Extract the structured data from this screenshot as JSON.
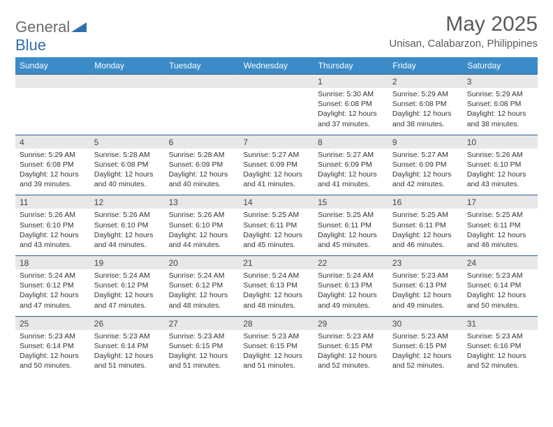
{
  "logo": {
    "text_general": "General",
    "text_blue": "Blue"
  },
  "title": "May 2025",
  "location": "Unisan, Calabarzon, Philippines",
  "colors": {
    "header_bg": "#3b8bc8",
    "header_text": "#ffffff",
    "daynum_bg": "#e8e8e8",
    "grid_border": "#2a5a8a",
    "body_text": "#333333",
    "title_text": "#5a5a5a",
    "logo_gray": "#6b6b6b",
    "logo_blue": "#2f6fab"
  },
  "day_headers": [
    "Sunday",
    "Monday",
    "Tuesday",
    "Wednesday",
    "Thursday",
    "Friday",
    "Saturday"
  ],
  "weeks": [
    [
      null,
      null,
      null,
      null,
      {
        "n": "1",
        "sunrise": "5:30 AM",
        "sunset": "6:08 PM",
        "dh": "12",
        "dm": "37"
      },
      {
        "n": "2",
        "sunrise": "5:29 AM",
        "sunset": "6:08 PM",
        "dh": "12",
        "dm": "38"
      },
      {
        "n": "3",
        "sunrise": "5:29 AM",
        "sunset": "6:08 PM",
        "dh": "12",
        "dm": "38"
      }
    ],
    [
      {
        "n": "4",
        "sunrise": "5:29 AM",
        "sunset": "6:08 PM",
        "dh": "12",
        "dm": "39"
      },
      {
        "n": "5",
        "sunrise": "5:28 AM",
        "sunset": "6:08 PM",
        "dh": "12",
        "dm": "40"
      },
      {
        "n": "6",
        "sunrise": "5:28 AM",
        "sunset": "6:09 PM",
        "dh": "12",
        "dm": "40"
      },
      {
        "n": "7",
        "sunrise": "5:27 AM",
        "sunset": "6:09 PM",
        "dh": "12",
        "dm": "41"
      },
      {
        "n": "8",
        "sunrise": "5:27 AM",
        "sunset": "6:09 PM",
        "dh": "12",
        "dm": "41"
      },
      {
        "n": "9",
        "sunrise": "5:27 AM",
        "sunset": "6:09 PM",
        "dh": "12",
        "dm": "42"
      },
      {
        "n": "10",
        "sunrise": "5:26 AM",
        "sunset": "6:10 PM",
        "dh": "12",
        "dm": "43"
      }
    ],
    [
      {
        "n": "11",
        "sunrise": "5:26 AM",
        "sunset": "6:10 PM",
        "dh": "12",
        "dm": "43"
      },
      {
        "n": "12",
        "sunrise": "5:26 AM",
        "sunset": "6:10 PM",
        "dh": "12",
        "dm": "44"
      },
      {
        "n": "13",
        "sunrise": "5:26 AM",
        "sunset": "6:10 PM",
        "dh": "12",
        "dm": "44"
      },
      {
        "n": "14",
        "sunrise": "5:25 AM",
        "sunset": "6:11 PM",
        "dh": "12",
        "dm": "45"
      },
      {
        "n": "15",
        "sunrise": "5:25 AM",
        "sunset": "6:11 PM",
        "dh": "12",
        "dm": "45"
      },
      {
        "n": "16",
        "sunrise": "5:25 AM",
        "sunset": "6:11 PM",
        "dh": "12",
        "dm": "46"
      },
      {
        "n": "17",
        "sunrise": "5:25 AM",
        "sunset": "6:11 PM",
        "dh": "12",
        "dm": "46"
      }
    ],
    [
      {
        "n": "18",
        "sunrise": "5:24 AM",
        "sunset": "6:12 PM",
        "dh": "12",
        "dm": "47"
      },
      {
        "n": "19",
        "sunrise": "5:24 AM",
        "sunset": "6:12 PM",
        "dh": "12",
        "dm": "47"
      },
      {
        "n": "20",
        "sunrise": "5:24 AM",
        "sunset": "6:12 PM",
        "dh": "12",
        "dm": "48"
      },
      {
        "n": "21",
        "sunrise": "5:24 AM",
        "sunset": "6:13 PM",
        "dh": "12",
        "dm": "48"
      },
      {
        "n": "22",
        "sunrise": "5:24 AM",
        "sunset": "6:13 PM",
        "dh": "12",
        "dm": "49"
      },
      {
        "n": "23",
        "sunrise": "5:23 AM",
        "sunset": "6:13 PM",
        "dh": "12",
        "dm": "49"
      },
      {
        "n": "24",
        "sunrise": "5:23 AM",
        "sunset": "6:14 PM",
        "dh": "12",
        "dm": "50"
      }
    ],
    [
      {
        "n": "25",
        "sunrise": "5:23 AM",
        "sunset": "6:14 PM",
        "dh": "12",
        "dm": "50"
      },
      {
        "n": "26",
        "sunrise": "5:23 AM",
        "sunset": "6:14 PM",
        "dh": "12",
        "dm": "51"
      },
      {
        "n": "27",
        "sunrise": "5:23 AM",
        "sunset": "6:15 PM",
        "dh": "12",
        "dm": "51"
      },
      {
        "n": "28",
        "sunrise": "5:23 AM",
        "sunset": "6:15 PM",
        "dh": "12",
        "dm": "51"
      },
      {
        "n": "29",
        "sunrise": "5:23 AM",
        "sunset": "6:15 PM",
        "dh": "12",
        "dm": "52"
      },
      {
        "n": "30",
        "sunrise": "5:23 AM",
        "sunset": "6:15 PM",
        "dh": "12",
        "dm": "52"
      },
      {
        "n": "31",
        "sunrise": "5:23 AM",
        "sunset": "6:16 PM",
        "dh": "12",
        "dm": "52"
      }
    ]
  ]
}
